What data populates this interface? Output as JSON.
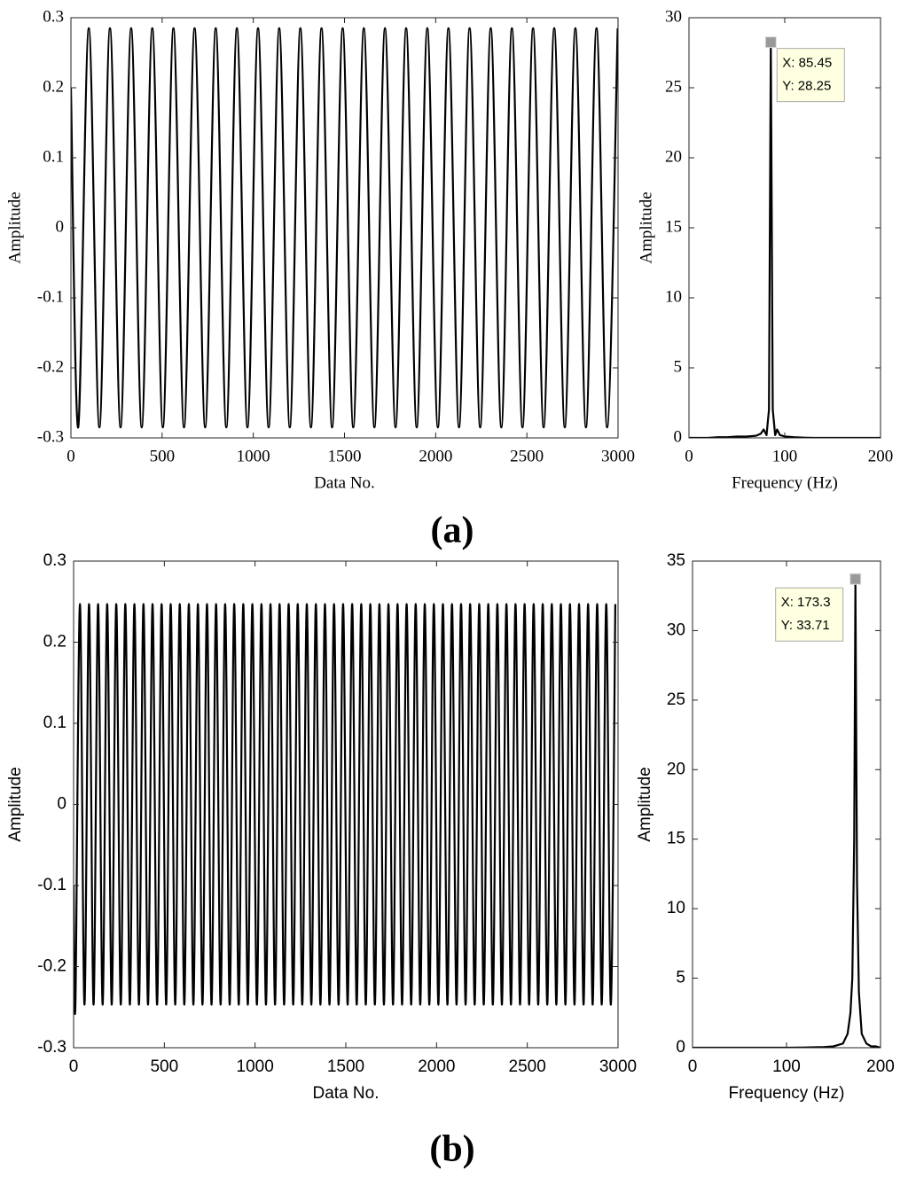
{
  "panel_labels": [
    "(a)",
    "(b)"
  ],
  "chart_data": [
    {
      "type": "line",
      "xlabel": "Data No.",
      "ylabel": "Amplitude",
      "color": "#000000",
      "xlim": [
        0,
        3000
      ],
      "ylim": [
        -0.3,
        0.3
      ],
      "xticks": [
        0,
        500,
        1000,
        1500,
        2000,
        2500,
        3000
      ],
      "yticks": [
        -0.3,
        -0.2,
        -0.1,
        0,
        0.1,
        0.2,
        0.3
      ],
      "x": [
        0,
        40,
        98,
        156,
        214,
        272,
        330,
        388,
        446,
        504,
        562,
        620,
        678,
        736,
        794,
        852,
        910,
        968,
        1026,
        1084,
        1142,
        1200,
        1258,
        1316,
        1374,
        1432,
        1490,
        1548,
        1606,
        1664,
        1722,
        1780,
        1838,
        1896,
        1954,
        2012,
        2070,
        2128,
        2186,
        2244,
        2302,
        2360,
        2418,
        2476,
        2534,
        2592,
        2650,
        2708,
        2766,
        2824,
        2882,
        2940,
        2998
      ],
      "values": [
        0.2,
        -0.285,
        0.285,
        -0.285,
        0.285,
        -0.285,
        0.285,
        -0.285,
        0.285,
        -0.285,
        0.285,
        -0.285,
        0.285,
        -0.285,
        0.285,
        -0.285,
        0.285,
        -0.285,
        0.285,
        -0.285,
        0.285,
        -0.285,
        0.285,
        -0.285,
        0.285,
        -0.285,
        0.285,
        -0.285,
        0.285,
        -0.285,
        0.285,
        -0.285,
        0.285,
        -0.285,
        0.285,
        -0.285,
        0.285,
        -0.285,
        0.285,
        -0.285,
        0.285,
        -0.285,
        0.285,
        -0.285,
        0.285,
        -0.285,
        0.285,
        -0.285,
        0.285,
        -0.285,
        0.285,
        -0.285,
        0.285
      ]
    },
    {
      "type": "line",
      "xlabel": "Frequency (Hz)",
      "ylabel": "Amplitude",
      "color": "#000000",
      "xlim": [
        0,
        200
      ],
      "ylim": [
        0,
        30
      ],
      "xticks": [
        0,
        100,
        200
      ],
      "yticks": [
        0,
        5,
        10,
        15,
        20,
        25,
        30
      ],
      "x": [
        0,
        10,
        20,
        30,
        40,
        50,
        60,
        70,
        75,
        78,
        81,
        83.5,
        85.45,
        87.5,
        90,
        92,
        95,
        100,
        110,
        120,
        130,
        140,
        150,
        160,
        170,
        180,
        190,
        200
      ],
      "values": [
        0,
        0,
        0,
        0.05,
        0.05,
        0.1,
        0.1,
        0.15,
        0.3,
        0.6,
        0.2,
        2,
        28.25,
        2,
        0.2,
        0.6,
        0.2,
        0.1,
        0.05,
        0.02,
        0,
        0,
        0,
        0,
        0,
        0,
        0,
        0
      ],
      "annotation": {
        "x": 85.45,
        "y": 28.25,
        "labels": [
          "X: 85.45",
          "Y: 28.25"
        ]
      }
    },
    {
      "type": "line",
      "xlabel": "Data No.",
      "ylabel": "Amplitude",
      "color": "#000000",
      "xlim": [
        0,
        3000
      ],
      "ylim": [
        -0.3,
        0.3
      ],
      "xticks": [
        0,
        500,
        1000,
        1500,
        2000,
        2500,
        3000
      ],
      "yticks": [
        -0.3,
        -0.2,
        -0.1,
        0,
        0.1,
        0.2,
        0.3
      ],
      "x": [
        0,
        10,
        35,
        60,
        85,
        110,
        135,
        160,
        185,
        210,
        235,
        260,
        285,
        310,
        335,
        360,
        385,
        410,
        435,
        460,
        485,
        510,
        535,
        560,
        585,
        610,
        635,
        660,
        685,
        710,
        735,
        760,
        785,
        810,
        835,
        860,
        885,
        910,
        935,
        960,
        985,
        1010,
        1035,
        1060,
        1085,
        1110,
        1135,
        1160,
        1185,
        1210,
        1235,
        1260,
        1285,
        1310,
        1335,
        1360,
        1385,
        1410,
        1435,
        1460,
        1485,
        1510,
        1535,
        1560,
        1585,
        1610,
        1635,
        1660,
        1685,
        1710,
        1735,
        1760,
        1785,
        1810,
        1835,
        1860,
        1885,
        1910,
        1935,
        1960,
        1985,
        2010,
        2035,
        2060,
        2085,
        2110,
        2135,
        2160,
        2185,
        2210,
        2235,
        2260,
        2285,
        2310,
        2335,
        2360,
        2385,
        2410,
        2435,
        2460,
        2485,
        2510,
        2535,
        2560,
        2585,
        2610,
        2635,
        2660,
        2685,
        2710,
        2735,
        2760,
        2785,
        2810,
        2835,
        2860,
        2885,
        2910,
        2935,
        2960,
        2985
      ],
      "values": [
        -0.1,
        -0.247,
        0.247,
        -0.247,
        0.247,
        -0.247,
        0.247,
        -0.247,
        0.247,
        -0.247,
        0.247,
        -0.247,
        0.247,
        -0.247,
        0.247,
        -0.247,
        0.247,
        -0.247,
        0.247,
        -0.247,
        0.247,
        -0.247,
        0.247,
        -0.247,
        0.247,
        -0.247,
        0.247,
        -0.247,
        0.247,
        -0.247,
        0.247,
        -0.247,
        0.247,
        -0.247,
        0.247,
        -0.247,
        0.247,
        -0.247,
        0.247,
        -0.247,
        0.247,
        -0.247,
        0.247,
        -0.247,
        0.247,
        -0.247,
        0.247,
        -0.247,
        0.247,
        -0.247,
        0.247,
        -0.247,
        0.247,
        -0.247,
        0.247,
        -0.247,
        0.247,
        -0.247,
        0.247,
        -0.247,
        0.247,
        -0.247,
        0.247,
        -0.247,
        0.247,
        -0.247,
        0.247,
        -0.247,
        0.247,
        -0.247,
        0.247,
        -0.247,
        0.247,
        -0.247,
        0.247,
        -0.247,
        0.247,
        -0.247,
        0.247,
        -0.247,
        0.247,
        -0.247,
        0.247,
        -0.247,
        0.247,
        -0.247,
        0.247,
        -0.247,
        0.247,
        -0.247,
        0.247,
        -0.247,
        0.247,
        -0.247,
        0.247,
        -0.247,
        0.247,
        -0.247,
        0.247,
        -0.247,
        0.247,
        -0.247,
        0.247,
        -0.247,
        0.247,
        -0.247,
        0.247,
        -0.247,
        0.247,
        -0.247,
        0.247,
        -0.247,
        0.247,
        -0.247,
        0.247,
        -0.247,
        0.247,
        -0.247,
        0.247,
        -0.247,
        0.247
      ]
    },
    {
      "type": "line",
      "xlabel": "Frequency (Hz)",
      "ylabel": "Amplitude",
      "color": "#000000",
      "xlim": [
        0,
        200
      ],
      "ylim": [
        0,
        35
      ],
      "xticks": [
        0,
        100,
        200
      ],
      "yticks": [
        0,
        5,
        10,
        15,
        20,
        25,
        30,
        35
      ],
      "x": [
        0,
        20,
        40,
        60,
        80,
        100,
        120,
        140,
        150,
        160,
        165,
        168,
        170,
        172,
        173.3,
        175,
        177,
        180,
        185,
        190,
        195,
        200
      ],
      "values": [
        0,
        0,
        0,
        0,
        0,
        0,
        0.02,
        0.05,
        0.1,
        0.3,
        1,
        2.5,
        5,
        15,
        33.71,
        12,
        4,
        1,
        0.3,
        0.1,
        0.1,
        0
      ],
      "annotation": {
        "x": 173.3,
        "y": 33.71,
        "labels": [
          "X: 173.3",
          "Y: 33.71"
        ]
      }
    }
  ]
}
